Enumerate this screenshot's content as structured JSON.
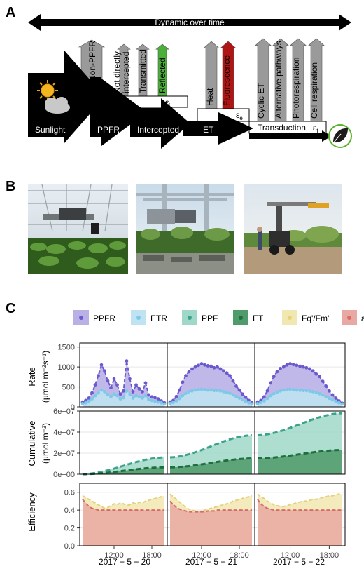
{
  "panels": {
    "a": "A",
    "b": "B",
    "c": "C"
  },
  "panel_a": {
    "dynamic_label": "Dynamic over time",
    "stages": [
      "Sunlight",
      "PPFR",
      "Intercepted",
      "ET",
      "Transduction"
    ],
    "losses": [
      {
        "label": "Non-PPFR",
        "color": "#9a9a9a"
      },
      {
        "label": "Not directly intercepted",
        "line1": "Not directly",
        "line2": "intercepted",
        "color": "#9a9a9a"
      },
      {
        "label": "Transmitted",
        "color": "#9a9a9a"
      },
      {
        "label": "Reflected",
        "color": "#4caf3a"
      },
      {
        "label": "Heat",
        "color": "#9a9a9a"
      },
      {
        "label": "Fluorescence",
        "color": "#b01515"
      },
      {
        "label": "Cyclic ET",
        "color": "#9a9a9a"
      },
      {
        "label": "Alternative pathways",
        "color": "#9a9a9a"
      },
      {
        "label": "Photorespiration",
        "color": "#9a9a9a"
      },
      {
        "label": "Cell respiration",
        "color": "#9a9a9a"
      }
    ],
    "epsilons": {
      "i": "i",
      "e": "e",
      "t": "t",
      "symbol": "ε"
    }
  },
  "panel_b": {
    "photos": [
      "greenhouse-field-scanner-photo",
      "vineyard-field-scanner-photo",
      "crop-field-tractor-sensor-photo"
    ]
  },
  "legend": [
    {
      "label": "PPFR",
      "color": "#6a5acd",
      "fill": "#b9b0e6"
    },
    {
      "label": "ETR",
      "color": "#7ec8e8",
      "fill": "#bfe3f2"
    },
    {
      "label": "PPF",
      "color": "#3aa38a",
      "fill": "#9fd8c8"
    },
    {
      "label": "ET",
      "color": "#1e6e3f",
      "fill": "#4f9b6a"
    },
    {
      "label": "Fq'/Fm'",
      "color": "#e6d27a",
      "fill": "#f1e7b0"
    },
    {
      "label": "εe",
      "color": "#d96a6a",
      "fill": "#e8a9a2"
    }
  ],
  "chart_data": [
    {
      "type": "area",
      "ylabel": "Rate",
      "yunit": "(μmol m⁻²s⁻¹)",
      "ylim": [
        0,
        1600
      ],
      "yticks": [
        "0",
        "500",
        "1000",
        "1500"
      ],
      "days": [
        "2017 − 5 − 20",
        "2017 − 5 − 21",
        "2017 − 5 − 22"
      ],
      "xticks": [
        "12:00",
        "18:00"
      ],
      "hours": [
        7,
        7.5,
        8,
        8.5,
        9,
        9.5,
        10,
        10.5,
        11,
        11.5,
        12,
        12.5,
        13,
        13.5,
        14,
        14.5,
        15,
        15.5,
        16,
        16.5,
        17,
        17.5,
        18,
        18.5,
        19,
        19.5,
        20
      ],
      "series": [
        {
          "name": "PPFR",
          "day_values": [
            [
              120,
              160,
              220,
              350,
              550,
              780,
              1050,
              900,
              650,
              480,
              700,
              550,
              320,
              400,
              1150,
              700,
              380,
              550,
              450,
              380,
              600,
              300,
              250,
              230,
              200,
              150,
              100
            ],
            [
              120,
              160,
              260,
              420,
              620,
              780,
              880,
              950,
              1000,
              1040,
              1080,
              1050,
              1030,
              1020,
              980,
              1000,
              950,
              900,
              850,
              780,
              650,
              520,
              420,
              320,
              240,
              160,
              100
            ],
            [
              120,
              160,
              250,
              400,
              600,
              760,
              880,
              960,
              1000,
              1050,
              1080,
              1060,
              1040,
              1020,
              1000,
              980,
              950,
              900,
              820,
              760,
              640,
              520,
              400,
              300,
              220,
              150,
              90
            ]
          ]
        },
        {
          "name": "ETR",
          "day_values": [
            [
              80,
              100,
              140,
              200,
              280,
              350,
              420,
              380,
              310,
              260,
              320,
              280,
              200,
              230,
              400,
              320,
              220,
              280,
              250,
              220,
              280,
              180,
              160,
              140,
              120,
              100,
              70
            ],
            [
              80,
              110,
              150,
              210,
              280,
              340,
              380,
              400,
              420,
              430,
              440,
              430,
              420,
              420,
              410,
              410,
              400,
              380,
              360,
              340,
              300,
              260,
              220,
              180,
              140,
              100,
              70
            ],
            [
              80,
              110,
              150,
              210,
              280,
              330,
              370,
              400,
              420,
              430,
              440,
              430,
              420,
              415,
              410,
              405,
              395,
              380,
              355,
              330,
              295,
              255,
              215,
              175,
              135,
              100,
              70
            ]
          ]
        }
      ]
    },
    {
      "type": "area",
      "ylabel": "Cumulative",
      "yunit": "(μmol m⁻²)",
      "ylim": [
        0,
        60000000
      ],
      "yticks": [
        "0e+00",
        "2e+07",
        "4e+07",
        "6e+07"
      ],
      "hours": [
        7,
        20
      ],
      "series": [
        {
          "name": "PPF",
          "day_values": [
            [
              0,
              16000000
            ],
            [
              0,
              37000000
            ],
            [
              0,
              58000000
            ]
          ]
        },
        {
          "name": "ET",
          "day_values": [
            [
              0,
              6500000
            ],
            [
              0,
              15000000
            ],
            [
              0,
              23000000
            ]
          ]
        }
      ]
    },
    {
      "type": "area",
      "ylabel": "Efficiency",
      "ylim": [
        0,
        0.7
      ],
      "yticks": [
        "0.0",
        "0.2",
        "0.4",
        "0.6"
      ],
      "hours": [
        7,
        7.5,
        8,
        8.5,
        9,
        9.5,
        10,
        10.5,
        11,
        11.5,
        12,
        12.5,
        13,
        13.5,
        14,
        14.5,
        15,
        15.5,
        16,
        16.5,
        17,
        17.5,
        18,
        18.5,
        19,
        19.5,
        20
      ],
      "series": [
        {
          "name": "Fq'/Fm'",
          "day_values": [
            [
              0.56,
              0.54,
              0.52,
              0.5,
              0.48,
              0.46,
              0.44,
              0.42,
              0.43,
              0.45,
              0.47,
              0.46,
              0.48,
              0.47,
              0.45,
              0.46,
              0.48,
              0.47,
              0.49,
              0.48,
              0.5,
              0.51,
              0.52,
              0.53,
              0.54,
              0.55,
              0.56
            ],
            [
              0.58,
              0.55,
              0.52,
              0.49,
              0.46,
              0.43,
              0.41,
              0.4,
              0.39,
              0.38,
              0.39,
              0.4,
              0.41,
              0.42,
              0.43,
              0.44,
              0.45,
              0.46,
              0.47,
              0.48,
              0.5,
              0.51,
              0.52,
              0.53,
              0.54,
              0.55,
              0.56
            ],
            [
              0.58,
              0.55,
              0.53,
              0.5,
              0.48,
              0.46,
              0.45,
              0.44,
              0.44,
              0.45,
              0.46,
              0.47,
              0.48,
              0.49,
              0.5,
              0.5,
              0.51,
              0.52,
              0.52,
              0.53,
              0.54,
              0.55,
              0.56,
              0.56,
              0.57,
              0.58,
              0.58
            ]
          ]
        },
        {
          "name": "εe",
          "day_values": [
            [
              0.52,
              0.48,
              0.44,
              0.42,
              0.41,
              0.4,
              0.4,
              0.4,
              0.4,
              0.4,
              0.4,
              0.4,
              0.4,
              0.4,
              0.4,
              0.4,
              0.4,
              0.4,
              0.4,
              0.4,
              0.4,
              0.4,
              0.4,
              0.4,
              0.4,
              0.4,
              0.4
            ],
            [
              0.5,
              0.46,
              0.43,
              0.41,
              0.4,
              0.39,
              0.38,
              0.38,
              0.38,
              0.38,
              0.38,
              0.38,
              0.39,
              0.39,
              0.39,
              0.4,
              0.4,
              0.4,
              0.4,
              0.4,
              0.4,
              0.4,
              0.4,
              0.4,
              0.4,
              0.4,
              0.4
            ],
            [
              0.52,
              0.47,
              0.44,
              0.42,
              0.41,
              0.4,
              0.4,
              0.4,
              0.4,
              0.4,
              0.4,
              0.4,
              0.4,
              0.4,
              0.4,
              0.4,
              0.4,
              0.4,
              0.4,
              0.4,
              0.4,
              0.4,
              0.4,
              0.4,
              0.4,
              0.4,
              0.4
            ]
          ]
        }
      ]
    }
  ]
}
